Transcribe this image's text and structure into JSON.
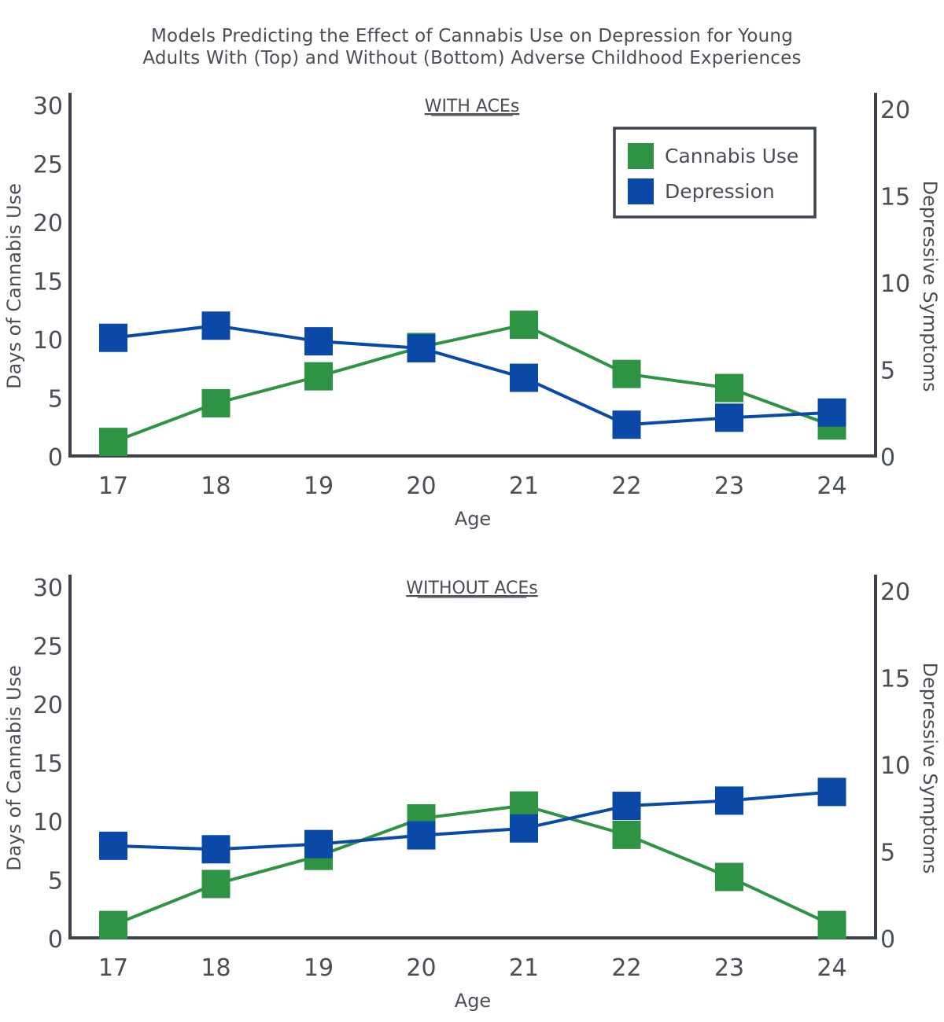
{
  "figure": {
    "title_line1": "Models Predicting the Effect of Cannabis Use on Depression for Young",
    "title_line2": "Adults With (Top) and Without (Bottom) Adverse Childhood Experiences"
  },
  "colors": {
    "cannabis": "#2e9444",
    "depression": "#0a49a8",
    "axis": "#3d434b",
    "text": "#4a4e55"
  },
  "legend": {
    "cannabis_label": "Cannabis Use",
    "depression_label": "Depression"
  },
  "chart_data": [
    {
      "type": "line",
      "title": "WITH ACEs",
      "xlabel": "Age",
      "ylabel": "Days of Cannabis Use",
      "y2label": "Depressive Symptoms",
      "x": [
        17,
        18,
        19,
        20,
        21,
        22,
        23,
        24
      ],
      "ylim": [
        0,
        30
      ],
      "y2lim": [
        0,
        20
      ],
      "yticks": [
        0,
        5,
        10,
        15,
        20,
        25,
        30
      ],
      "y2ticks": [
        0,
        5,
        10,
        15,
        20
      ],
      "legend_position": "top-right",
      "series": [
        {
          "name": "Cannabis Use",
          "axis": "left",
          "values": [
            1.2,
            4.5,
            6.8,
            9.3,
            11.2,
            7.0,
            5.8,
            2.6
          ]
        },
        {
          "name": "Depression",
          "axis": "right",
          "values": [
            6.8,
            7.5,
            6.6,
            6.2,
            4.5,
            1.8,
            2.2,
            2.5
          ]
        }
      ]
    },
    {
      "type": "line",
      "title": "WITHOUT ACEs",
      "xlabel": "Age",
      "ylabel": "Days of Cannabis Use",
      "y2label": "Depressive Symptoms",
      "x": [
        17,
        18,
        19,
        20,
        21,
        22,
        23,
        24
      ],
      "ylim": [
        0,
        30
      ],
      "y2lim": [
        0,
        20
      ],
      "yticks": [
        0,
        5,
        10,
        15,
        20,
        25,
        30
      ],
      "y2ticks": [
        0,
        5,
        10,
        15,
        20
      ],
      "series": [
        {
          "name": "Cannabis Use",
          "axis": "left",
          "values": [
            1.1,
            4.6,
            7.0,
            10.2,
            11.3,
            8.8,
            5.2,
            1.1
          ]
        },
        {
          "name": "Depression",
          "axis": "right",
          "values": [
            5.3,
            5.1,
            5.4,
            5.9,
            6.3,
            7.6,
            7.9,
            8.4
          ]
        }
      ]
    }
  ]
}
